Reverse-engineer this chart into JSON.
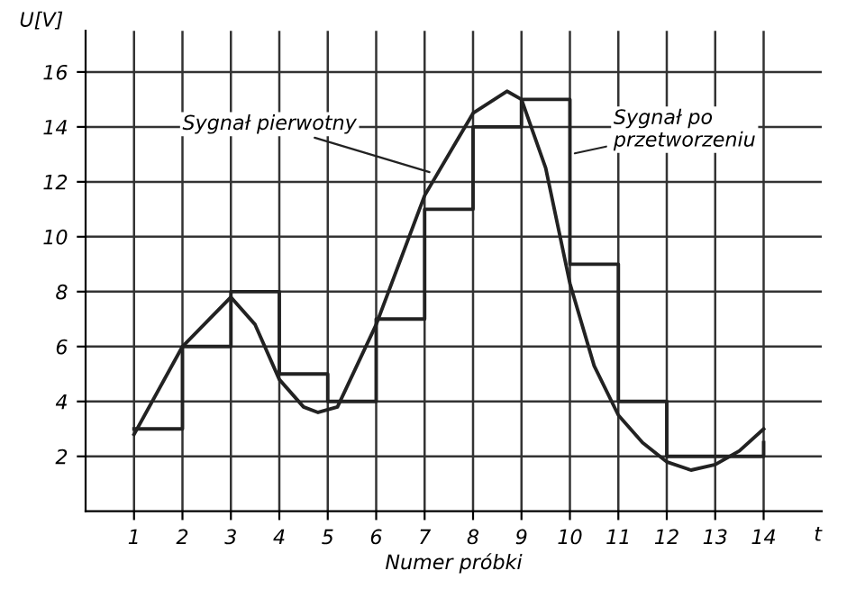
{
  "chart_data": {
    "type": "line",
    "xlabel": "Numer próbki",
    "ylabel": "U[V]",
    "xlim": [
      0,
      15.2
    ],
    "ylim": [
      0,
      17.5
    ],
    "xticks": [
      1,
      2,
      3,
      4,
      5,
      6,
      7,
      8,
      9,
      10,
      11,
      12,
      13,
      14
    ],
    "yticks": [
      2,
      4,
      6,
      8,
      10,
      12,
      14,
      16
    ],
    "grid": true,
    "series": [
      {
        "color": "#222222",
        "x": [
          1,
          2,
          3,
          3.5,
          4,
          4.5,
          4.8,
          5.2,
          6,
          7,
          8,
          8.7,
          9,
          9.5,
          10,
          10.5,
          11,
          11.5,
          12,
          12.5,
          13,
          13.5,
          14
        ],
        "values": [
          2.8,
          6,
          7.8,
          6.8,
          4.8,
          3.8,
          3.6,
          3.8,
          6.8,
          11.5,
          14.5,
          15.3,
          15,
          12.5,
          8.3,
          5.3,
          3.5,
          2.5,
          1.8,
          1.5,
          1.7,
          2.2,
          3
        ]
      },
      {
        "type": "step",
        "color": "#222222",
        "x": [
          1,
          2,
          3,
          4,
          5,
          6,
          7,
          8,
          9,
          10,
          11,
          12,
          13,
          14
        ],
        "values": [
          3,
          6,
          8,
          5,
          4,
          7,
          11,
          14,
          15,
          9,
          4,
          2,
          2,
          2.5
        ]
      }
    ],
    "annotations": [
      {
        "text": "Sygnał pierwotny",
        "x": 7.2,
        "y": 12.3
      },
      {
        "text": "Sygnał po przetworzeniu",
        "x": 10,
        "y": 13
      },
      "t"
    ]
  }
}
